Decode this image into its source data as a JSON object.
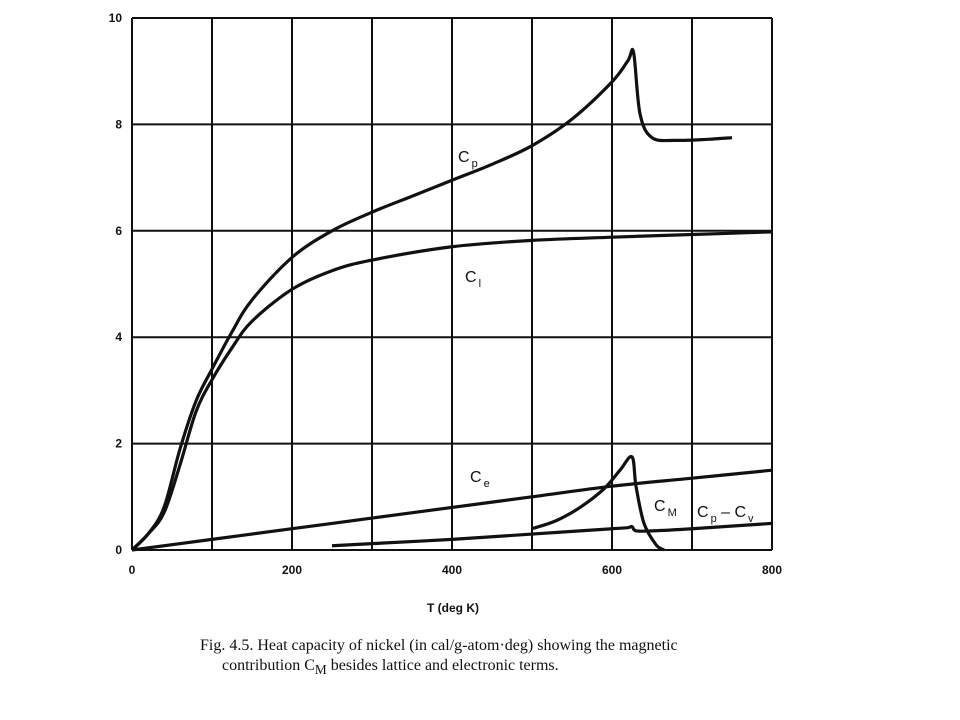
{
  "chart_data": {
    "type": "line",
    "title": "",
    "xlabel": "T (deg K)",
    "ylabel": "",
    "xlim": [
      0,
      800
    ],
    "ylim": [
      0,
      10
    ],
    "grid": true,
    "x_ticks": [
      0,
      200,
      400,
      600,
      800
    ],
    "y_ticks": [
      0,
      2,
      4,
      6,
      8,
      10
    ],
    "series": [
      {
        "name": "Cp",
        "label_main": "C",
        "label_sub": "p",
        "x": [
          0,
          20,
          40,
          60,
          80,
          100,
          125,
          150,
          200,
          250,
          300,
          350,
          400,
          450,
          500,
          550,
          600,
          620,
          627,
          635,
          650,
          680,
          720,
          750
        ],
        "y": [
          0,
          0.3,
          0.8,
          1.9,
          2.8,
          3.4,
          4.1,
          4.7,
          5.5,
          6.0,
          6.35,
          6.65,
          6.95,
          7.25,
          7.6,
          8.1,
          8.8,
          9.2,
          9.35,
          8.2,
          7.75,
          7.7,
          7.72,
          7.75
        ]
      },
      {
        "name": "Cl",
        "label_main": "C",
        "label_sub": "l",
        "x": [
          0,
          20,
          40,
          60,
          80,
          100,
          125,
          150,
          200,
          250,
          300,
          400,
          500,
          600,
          700,
          800
        ],
        "y": [
          0,
          0.3,
          0.7,
          1.6,
          2.6,
          3.2,
          3.8,
          4.3,
          4.9,
          5.25,
          5.45,
          5.7,
          5.82,
          5.88,
          5.93,
          5.98
        ]
      },
      {
        "name": "Ce",
        "label_main": "C",
        "label_sub": "e",
        "x": [
          0,
          100,
          200,
          300,
          400,
          500,
          600,
          700,
          800
        ],
        "y": [
          0,
          0.2,
          0.4,
          0.6,
          0.8,
          1.0,
          1.2,
          1.35,
          1.5
        ]
      },
      {
        "name": "CM",
        "label_main": "C",
        "label_sub": "M",
        "x": [
          500,
          530,
          560,
          590,
          610,
          625,
          630,
          640,
          655,
          665
        ],
        "y": [
          0.4,
          0.55,
          0.8,
          1.15,
          1.5,
          1.75,
          1.2,
          0.5,
          0.1,
          0
        ]
      },
      {
        "name": "Cp - Cv",
        "label_main": "C",
        "label_sub": "p",
        "label_mid": " – C",
        "label_sub2": "v",
        "x": [
          250,
          300,
          400,
          500,
          600,
          620,
          625,
          630,
          650,
          700,
          800
        ],
        "y": [
          0.08,
          0.12,
          0.2,
          0.3,
          0.4,
          0.42,
          0.44,
          0.36,
          0.36,
          0.4,
          0.5
        ]
      }
    ]
  },
  "caption": {
    "line1": "Fig. 4.5.  Heat capacity of nickel (in cal/g-atom·deg) showing the magnetic",
    "line2": "contribution C",
    "line2_sub": "M",
    "line2_rest": " besides lattice and electronic terms."
  }
}
